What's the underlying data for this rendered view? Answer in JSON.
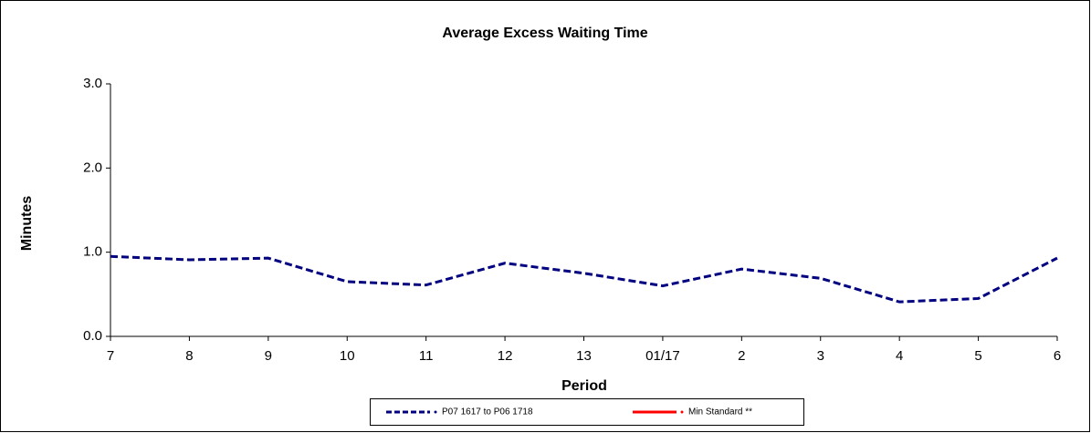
{
  "chart_data": {
    "type": "line",
    "title": "Average Excess Waiting Time",
    "x_label": "Period",
    "y_label": "Minutes",
    "categories": [
      "7",
      "8",
      "9",
      "10",
      "11",
      "12",
      "13",
      "01/17",
      "2",
      "3",
      "4",
      "5",
      "6"
    ],
    "series": [
      {
        "name": "P07 1617 to P06 1718",
        "color": "#000080",
        "values": [
          0.95,
          0.91,
          0.93,
          0.65,
          0.61,
          0.87,
          0.75,
          0.6,
          0.8,
          0.69,
          0.41,
          0.45,
          0.93
        ]
      },
      {
        "name": "Min Standard **",
        "color": "#ff0000",
        "values": [
          null,
          null,
          null,
          null,
          null,
          null,
          null,
          null,
          null,
          null,
          null,
          null,
          null
        ]
      }
    ],
    "ylim": [
      0,
      3
    ],
    "yticks": [
      {
        "value": 0,
        "label": "0.0"
      },
      {
        "value": 1,
        "label": "1.0"
      },
      {
        "value": 2,
        "label": "2.0"
      },
      {
        "value": 3,
        "label": "3.0"
      }
    ]
  }
}
